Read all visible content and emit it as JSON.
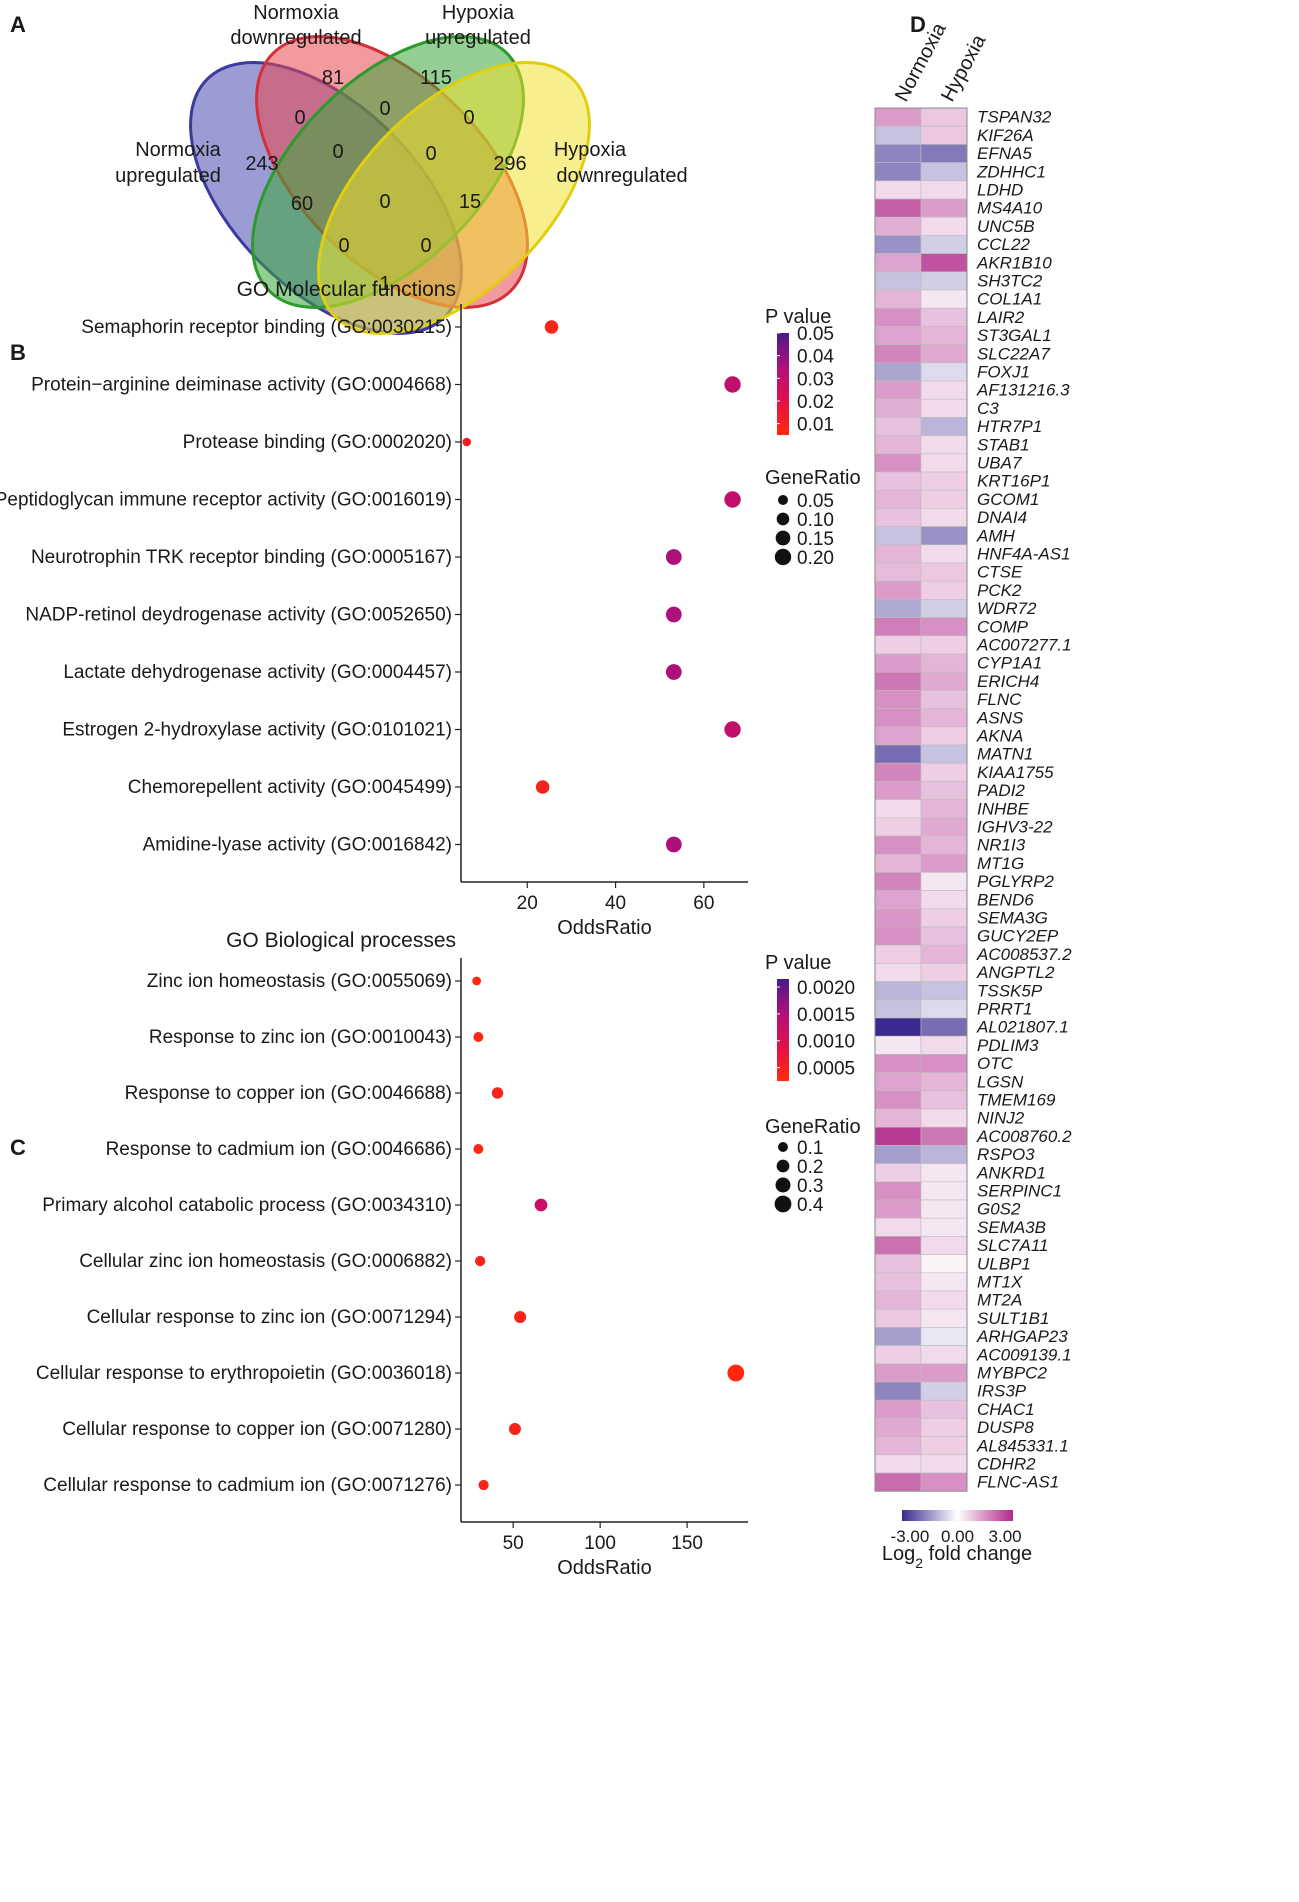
{
  "panels": {
    "a": "A",
    "b": "B",
    "c": "C",
    "d": "D"
  },
  "venn": {
    "labels": {
      "normoxia_down": [
        "Normoxia",
        "downregulated"
      ],
      "hypoxia_up": [
        "Hypoxia",
        "upregulated"
      ],
      "normoxia_up": [
        "Normoxia",
        "upregulated"
      ],
      "hypoxia_down": [
        "Hypoxia",
        "downregulated"
      ]
    },
    "colors": {
      "normoxia_up": "#4b4bb0",
      "normoxia_down": "#e8474f",
      "hypoxia_up": "#3aa83a",
      "hypoxia_down": "#f0e030"
    },
    "counts": {
      "nu_only": "243",
      "nd_only": "81",
      "hu_only": "115",
      "hd_only": "296",
      "nu_nd": "0",
      "nd_hu": "0",
      "hu_hd": "0",
      "nu_nd_hu": "0",
      "nd_hu_hd": "0",
      "nu_hu": "60",
      "nd_hd": "15",
      "all": "0",
      "nu_hu_hd": "0",
      "nu_nd_hd": "0",
      "nu_hd": "1"
    }
  },
  "chart_data": [
    {
      "type": "scatter",
      "title": "GO Molecular functions",
      "xlabel": "OddsRatio",
      "ylabel": "",
      "xlim": [
        5,
        70
      ],
      "xticks": [
        20,
        40,
        60
      ],
      "categories": [
        "Semaphorin receptor binding (GO:0030215)",
        "Protein−arginine deiminase activity (GO:0004668)",
        "Protease binding (GO:0002020)",
        "Peptidoglycan immune receptor activity (GO:0016019)",
        "Neurotrophin TRK receptor binding (GO:0005167)",
        "NADP-retinol deydrogenase activity (GO:0052650)",
        "Lactate dehydrogenase activity (GO:0004457)",
        "Estrogen 2-hydroxylase activity (GO:0101021)",
        "Chemorepellent activity (GO:0045499)",
        "Amidine-lyase activity (GO:0016842)"
      ],
      "odds_ratio": [
        25.5,
        66.5,
        6.3,
        66.5,
        53.2,
        53.2,
        53.2,
        66.5,
        23.5,
        53.2
      ],
      "pvalue": [
        0.008,
        0.03,
        0.012,
        0.03,
        0.035,
        0.035,
        0.035,
        0.03,
        0.009,
        0.035
      ],
      "gene_ratio": [
        0.12,
        0.2,
        0.03,
        0.2,
        0.18,
        0.18,
        0.18,
        0.2,
        0.12,
        0.18
      ],
      "legend": {
        "color_title": "P value",
        "color_ticks": [
          "0.05",
          "0.04",
          "0.03",
          "0.02",
          "0.01"
        ],
        "color_tick_values": [
          0.05,
          0.04,
          0.03,
          0.02,
          0.01
        ],
        "color_range": [
          0.005,
          0.05
        ],
        "size_title": "GeneRatio",
        "size_ticks": [
          "0.05",
          "0.10",
          "0.15",
          "0.20"
        ],
        "size_tick_values": [
          0.05,
          0.1,
          0.15,
          0.2
        ],
        "size_range": [
          0.0,
          0.2
        ]
      }
    },
    {
      "type": "scatter",
      "title": "GO Biological processes",
      "xlabel": "OddsRatio",
      "ylabel": "",
      "xlim": [
        20,
        185
      ],
      "xticks": [
        50,
        100,
        150
      ],
      "categories": [
        "Zinc ion homeostasis (GO:0055069)",
        "Response to zinc ion (GO:0010043)",
        "Response to copper ion (GO:0046688)",
        "Response to cadmium ion (GO:0046686)",
        "Primary alcohol catabolic process (GO:0034310)",
        "Cellular zinc ion homeostasis (GO:0006882)",
        "Cellular response to zinc ion (GO:0071294)",
        "Cellular response to erythropoietin (GO:0036018)",
        "Cellular response to copper ion (GO:0071280)",
        "Cellular response to cadmium ion (GO:0071276)"
      ],
      "odds_ratio": [
        29,
        30,
        41,
        30,
        66,
        31,
        54,
        178,
        51,
        33
      ],
      "pvalue": [
        0.0003,
        0.0003,
        0.0004,
        0.0003,
        0.0012,
        0.0004,
        0.0004,
        0.0003,
        0.0004,
        0.0004
      ],
      "gene_ratio": [
        0.07,
        0.1,
        0.15,
        0.1,
        0.2,
        0.11,
        0.17,
        0.4,
        0.17,
        0.11
      ],
      "legend": {
        "color_title": "P value",
        "color_ticks": [
          "0.0020",
          "0.0015",
          "0.0010",
          "0.0005"
        ],
        "color_tick_values": [
          0.002,
          0.0015,
          0.001,
          0.0005
        ],
        "color_range": [
          0.00025,
          0.00215
        ],
        "size_title": "GeneRatio",
        "size_ticks": [
          "0.1",
          "0.2",
          "0.3",
          "0.4"
        ],
        "size_tick_values": [
          0.1,
          0.2,
          0.3,
          0.4
        ],
        "size_range": [
          0.0,
          0.4
        ]
      }
    },
    {
      "type": "heatmap",
      "title": "",
      "columns": [
        "Normoxia",
        "Hypoxia"
      ],
      "legend_title": "Log2 fold change",
      "legend_title_base": "Log",
      "legend_title_sub": "2",
      "legend_title_rest": " fold change",
      "legend_ticks": [
        "-3.00",
        "0.00",
        "3.00"
      ],
      "legend_tick_values": [
        -3,
        0,
        3
      ],
      "range": [
        -3.5,
        3.5
      ],
      "rows": [
        "TSPAN32",
        "KIF26A",
        "EFNA5",
        "ZDHHC1",
        "LDHD",
        "MS4A10",
        "UNC5B",
        "CCL22",
        "AKR1B10",
        "SH3TC2",
        "COL1A1",
        "LAIR2",
        "ST3GAL1",
        "SLC22A7",
        "FOXJ1",
        "AF131216.3",
        "C3",
        "HTR7P1",
        "STAB1",
        "UBA7",
        "KRT16P1",
        "GCOM1",
        "DNAI4",
        "AMH",
        "HNF4A-AS1",
        "CTSE",
        "PCK2",
        "WDR72",
        "COMP",
        "AC007277.1",
        "CYP1A1",
        "ERICH4",
        "FLNC",
        "ASNS",
        "AKNA",
        "MATN1",
        "KIAA1755",
        "PADI2",
        "INHBE",
        "IGHV3-22",
        "NR1I3",
        "MT1G",
        "PGLYRP2",
        "BEND6",
        "SEMA3G",
        "GUCY2EP",
        "AC008537.2",
        "ANGPTL2",
        "TSSK5P",
        "PRRT1",
        "AL021807.1",
        "PDLIM3",
        "OTC",
        "LGSN",
        "TMEM169",
        "NINJ2",
        "AC008760.2",
        "RSPO3",
        "ANKRD1",
        "SERPINC1",
        "G0S2",
        "SEMA3B",
        "SLC7A11",
        "ULBP1",
        "MT1X",
        "MT2A",
        "SULT1B1",
        "ARHGAP23",
        "AC009139.1",
        "MYBPC2",
        "IRS3P",
        "CHAC1",
        "DUSP8",
        "AL845331.1",
        "CDHR2",
        "FLNC-AS1"
      ],
      "normoxia": [
        1.6,
        -1.0,
        -2.0,
        -2.0,
        0.6,
        2.6,
        1.3,
        -1.8,
        1.5,
        -1.0,
        1.2,
        1.8,
        1.5,
        2.0,
        -1.5,
        1.6,
        1.3,
        1.0,
        1.2,
        1.8,
        1.0,
        1.2,
        1.0,
        -1.0,
        1.2,
        1.1,
        1.6,
        -1.4,
        2.1,
        0.8,
        1.6,
        2.2,
        1.8,
        1.8,
        1.5,
        -2.4,
        2.0,
        1.6,
        0.6,
        0.8,
        1.8,
        1.2,
        2.0,
        1.5,
        1.7,
        1.8,
        0.8,
        0.6,
        -1.2,
        -1.0,
        -3.5,
        0.4,
        1.8,
        1.5,
        1.8,
        1.2,
        3.2,
        -1.6,
        0.8,
        1.8,
        1.6,
        0.6,
        2.3,
        1.0,
        1.0,
        1.2,
        0.9,
        -1.6,
        0.8,
        1.6,
        -2.0,
        1.6,
        1.4,
        1.2,
        0.6,
        2.4
      ],
      "hypoxia": [
        0.9,
        0.9,
        -2.2,
        -1.0,
        0.6,
        1.6,
        0.6,
        -0.8,
        2.8,
        -0.8,
        0.4,
        1.0,
        1.2,
        1.4,
        -0.6,
        0.6,
        0.6,
        -1.2,
        0.6,
        0.6,
        0.8,
        0.8,
        0.6,
        -1.8,
        0.6,
        0.9,
        0.8,
        -0.8,
        1.8,
        0.8,
        1.2,
        1.4,
        1.0,
        1.2,
        0.8,
        -1.0,
        0.8,
        1.0,
        1.2,
        1.4,
        1.2,
        1.6,
        0.4,
        0.6,
        0.8,
        1.0,
        1.2,
        0.8,
        -1.0,
        -0.6,
        -2.4,
        0.6,
        1.8,
        1.2,
        1.0,
        0.6,
        2.2,
        -1.2,
        0.4,
        0.4,
        0.4,
        0.4,
        0.6,
        0.2,
        0.4,
        0.6,
        0.4,
        -0.4,
        0.6,
        1.6,
        -0.8,
        1.0,
        0.8,
        0.8,
        0.6,
        1.8
      ]
    }
  ]
}
